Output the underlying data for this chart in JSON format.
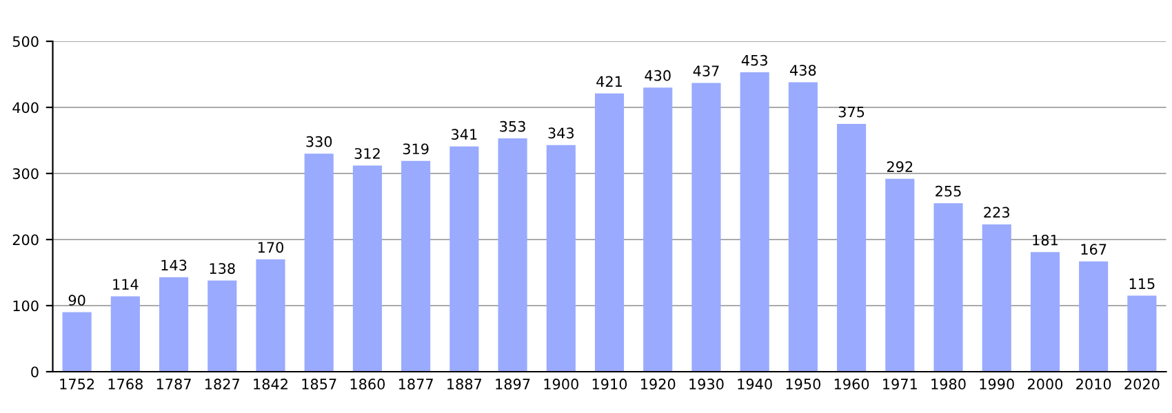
{
  "chart_data": {
    "type": "bar",
    "categories": [
      "1752",
      "1768",
      "1787",
      "1827",
      "1842",
      "1857",
      "1860",
      "1877",
      "1887",
      "1897",
      "1900",
      "1910",
      "1920",
      "1930",
      "1940",
      "1950",
      "1960",
      "1971",
      "1980",
      "1990",
      "2000",
      "2010",
      "2020"
    ],
    "values": [
      90,
      114,
      143,
      138,
      170,
      330,
      312,
      319,
      341,
      353,
      343,
      421,
      430,
      437,
      453,
      438,
      375,
      292,
      255,
      223,
      181,
      167,
      115
    ],
    "color": "#99aaff",
    "ylim": [
      0,
      500
    ],
    "yticks": [
      0,
      100,
      200,
      300,
      400,
      500
    ],
    "grid": "y",
    "data_labels": true
  }
}
